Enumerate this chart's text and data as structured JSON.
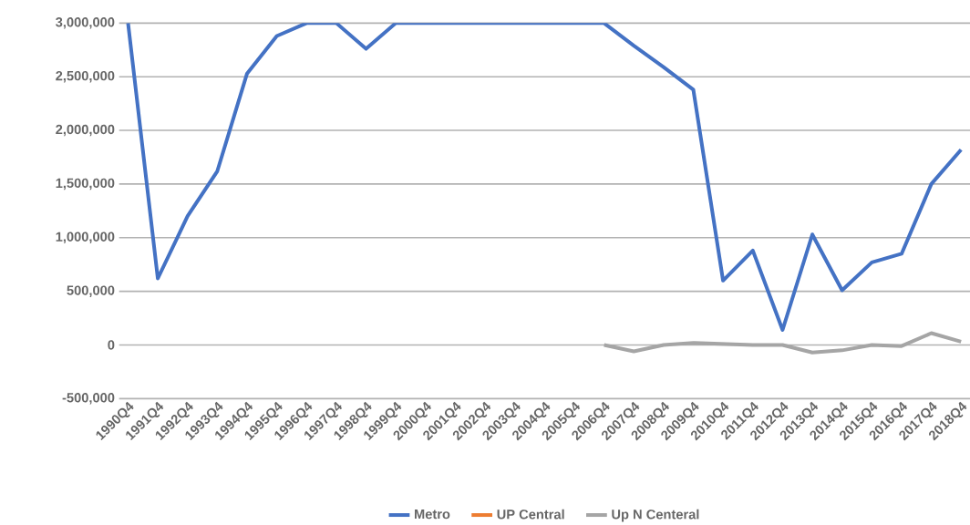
{
  "chart_data": {
    "type": "line",
    "categories": [
      "1990Q4",
      "1991Q4",
      "1992Q4",
      "1993Q4",
      "1994Q4",
      "1995Q4",
      "1996Q4",
      "1997Q4",
      "1998Q4",
      "1999Q4",
      "2000Q4",
      "2001Q4",
      "2002Q4",
      "2003Q4",
      "2004Q4",
      "2005Q4",
      "2006Q4",
      "2007Q4",
      "2008Q4",
      "2009Q4",
      "2010Q4",
      "2011Q4",
      "2012Q4",
      "2013Q4",
      "2014Q4",
      "2015Q4",
      "2016Q4",
      "2017Q4",
      "2018Q4"
    ],
    "series": [
      {
        "name": "Metro",
        "color": "#4472c4",
        "values": [
          3000000,
          620000,
          1200000,
          1620000,
          2530000,
          2880000,
          3000000,
          3000000,
          2760000,
          3000000,
          3000000,
          3000000,
          3000000,
          3000000,
          3000000,
          3000000,
          3000000,
          2790000,
          2590000,
          2380000,
          600000,
          880000,
          140000,
          1030000,
          510000,
          770000,
          850000,
          1500000,
          1820000
        ]
      },
      {
        "name": "UP Central",
        "color": "#ed7d31",
        "values": [
          null,
          null,
          null,
          null,
          null,
          null,
          null,
          null,
          null,
          null,
          null,
          null,
          null,
          null,
          null,
          null,
          null,
          null,
          null,
          null,
          null,
          null,
          null,
          null,
          null,
          null,
          null,
          null,
          null
        ]
      },
      {
        "name": "Up N Centeral",
        "color": "#a5a5a5",
        "values": [
          null,
          null,
          null,
          null,
          null,
          null,
          null,
          null,
          null,
          null,
          null,
          null,
          null,
          null,
          null,
          null,
          0,
          -60000,
          0,
          20000,
          10000,
          0,
          0,
          -70000,
          -50000,
          0,
          -10000,
          110000,
          30000
        ]
      }
    ],
    "ylim": [
      -500000,
      3000000
    ],
    "yticks": [
      {
        "value": -500000,
        "label": "-500,000"
      },
      {
        "value": 0,
        "label": "0"
      },
      {
        "value": 500000,
        "label": "500,000"
      },
      {
        "value": 1000000,
        "label": "1,000,000"
      },
      {
        "value": 1500000,
        "label": "1,500,000"
      },
      {
        "value": 2000000,
        "label": "2,000,000"
      },
      {
        "value": 2500000,
        "label": "2,500,000"
      },
      {
        "value": 3000000,
        "label": "3,000,000"
      }
    ],
    "grid": "y",
    "legend": "bottom",
    "marker": "none",
    "line_style": "solid"
  }
}
